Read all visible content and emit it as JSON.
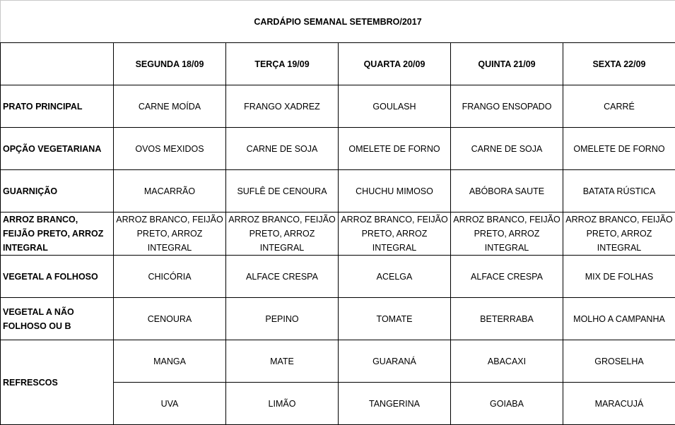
{
  "title": "CARDÁPIO SEMANAL SETEMBRO/2017",
  "days": [
    "SEGUNDA   18/09",
    "TERÇA 19/09",
    "QUARTA 20/09",
    "QUINTA 21/09",
    "SEXTA 22/09"
  ],
  "rows": [
    {
      "label": "PRATO PRINCIPAL",
      "items": [
        "CARNE MOÍDA",
        "FRANGO XADREZ",
        "GOULASH",
        "FRANGO ENSOPADO",
        "CARRÉ"
      ]
    },
    {
      "label": "OPÇÃO VEGETARIANA",
      "items": [
        "OVOS MEXIDOS",
        "CARNE DE SOJA",
        "OMELETE DE FORNO",
        "CARNE DE SOJA",
        "OMELETE DE FORNO"
      ]
    },
    {
      "label": "GUARNIÇÃO",
      "items": [
        "MACARRÃO",
        "SUFLÊ DE CENOURA",
        "CHUCHU MIMOSO",
        "ABÓBORA SAUTE",
        "BATATA RÚSTICA"
      ]
    },
    {
      "label": "ARROZ BRANCO, FEIJÃO PRETO, ARROZ INTEGRAL",
      "items": [
        "ARROZ BRANCO, FEIJÃO PRETO, ARROZ INTEGRAL",
        "ARROZ BRANCO, FEIJÃO PRETO, ARROZ INTEGRAL",
        "ARROZ BRANCO, FEIJÃO PRETO, ARROZ INTEGRAL",
        "ARROZ BRANCO, FEIJÃO PRETO, ARROZ INTEGRAL",
        "ARROZ BRANCO, FEIJÃO PRETO, ARROZ INTEGRAL"
      ]
    },
    {
      "label": "VEGETAL A FOLHOSO",
      "items": [
        "CHICÓRIA",
        "ALFACE CRESPA",
        "ACELGA",
        "ALFACE CRESPA",
        "MIX DE FOLHAS"
      ]
    },
    {
      "label": "VEGETAL A NÃO FOLHOSO OU B",
      "items": [
        "CENOURA",
        "PEPINO",
        "TOMATE",
        "BETERRABA",
        "MOLHO A CAMPANHA"
      ]
    }
  ],
  "refrescos": {
    "label": "REFRESCOS",
    "row1": [
      "MANGA",
      "MATE",
      "GUARANÁ",
      "ABACAXI",
      "GROSELHA"
    ],
    "row2": [
      "UVA",
      "LIMÃO",
      "TANGERINA",
      "GOIABA",
      "MARACUJÁ"
    ]
  }
}
